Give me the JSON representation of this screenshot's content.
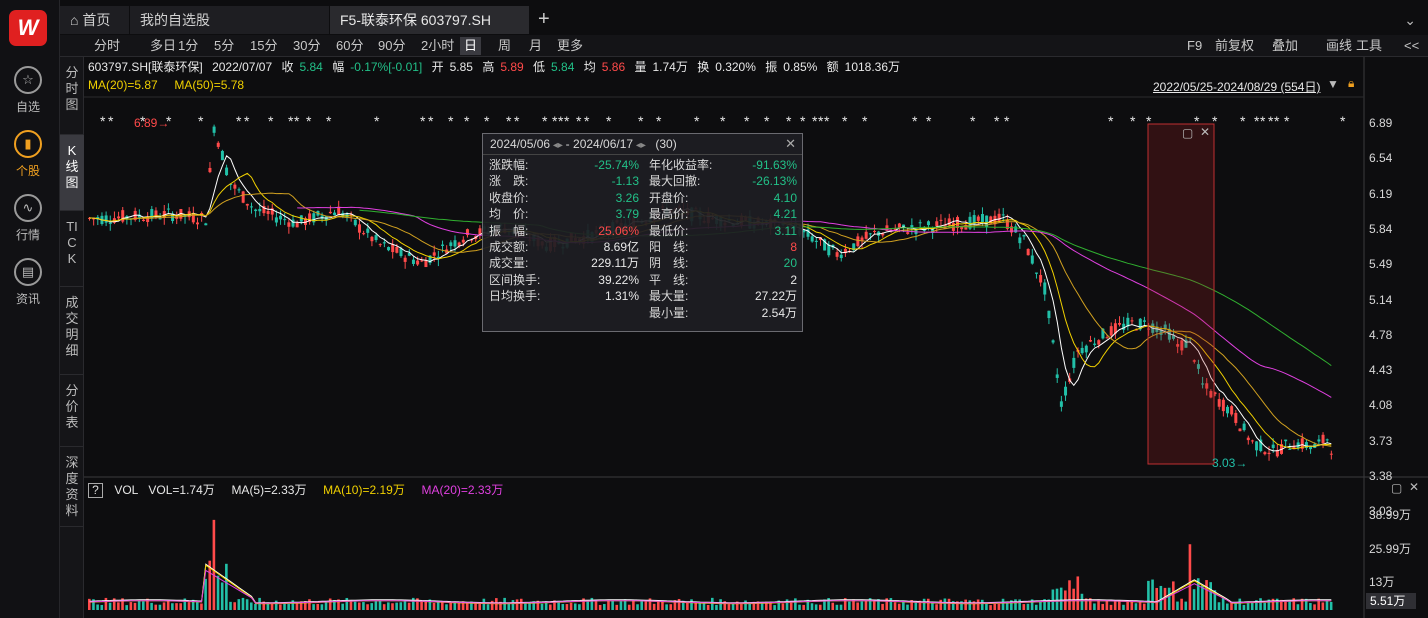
{
  "rail": {
    "logo": "W",
    "items": [
      {
        "label": "自选",
        "icon": "star-icon",
        "glyph": "☆"
      },
      {
        "label": "个股",
        "icon": "chart-bar-icon",
        "glyph": "▮",
        "active": true
      },
      {
        "label": "行情",
        "icon": "trend-icon",
        "glyph": "∿"
      },
      {
        "label": "资讯",
        "icon": "news-icon",
        "glyph": "▤"
      }
    ]
  },
  "tabs": [
    {
      "label": "首页",
      "icon": "home-icon"
    },
    {
      "label": "我的自选股"
    },
    {
      "label": "F5-联泰环保 603797.SH",
      "active": true
    }
  ],
  "tab_add": "+",
  "tab_menu": "⌄",
  "periods": [
    "分时",
    "多日",
    "1分",
    "5分",
    "15分",
    "30分",
    "60分",
    "90分",
    "2小时",
    "日",
    "周",
    "月",
    "更多"
  ],
  "selected_period": "日",
  "right_tools": [
    "F9",
    "前复权",
    "叠加",
    "画线",
    "工具",
    "<<"
  ],
  "side_tabs": [
    "分时图",
    "K线图",
    "TICK",
    "成交明细",
    "分价表",
    "深度资料"
  ],
  "info": {
    "code": "603797.SH[联泰环保]",
    "date": "2022/07/07",
    "close_label": "收",
    "close": "5.84",
    "chg_label": "幅",
    "chg": "-0.17%[-0.01]",
    "open_label": "开",
    "open": "5.85",
    "high_label": "高",
    "high": "5.89",
    "low_label": "低",
    "low": "5.84",
    "avg_label": "均",
    "avg": "5.86",
    "vol_label": "量",
    "vol": "1.74万",
    "turn_label": "换",
    "turn": "0.320%",
    "amp_label": "振",
    "amp": "0.85%",
    "amt_label": "额",
    "amt": "1018.36万"
  },
  "ma": {
    "ma20": "MA(20)=5.87",
    "ma50": "MA(50)=5.78"
  },
  "range": "2022/05/25-2024/08/29 (554日)",
  "price_axis": [
    "6.89",
    "6.54",
    "6.19",
    "5.84",
    "5.49",
    "5.14",
    "4.78",
    "4.43",
    "4.08",
    "3.73",
    "3.38",
    "3.03"
  ],
  "high_mark": "6.89",
  "low_mark": "3.03",
  "popup": {
    "start": "2024/05/06",
    "end": "2024/06/17",
    "count": "(30)",
    "left": [
      {
        "label": "涨跌幅:",
        "value": "-25.74%",
        "color": "dn"
      },
      {
        "label": "涨　跌:",
        "value": "-1.13",
        "color": "dn"
      },
      {
        "label": "收盘价:",
        "value": "3.26",
        "color": "dn"
      },
      {
        "label": "均　价:",
        "value": "3.79",
        "color": "dn"
      },
      {
        "label": "振　幅:",
        "value": "25.06%",
        "color": "up"
      },
      {
        "label": "成交额:",
        "value": "8.69亿",
        "color": "wt"
      },
      {
        "label": "成交量:",
        "value": "229.11万",
        "color": "wt"
      },
      {
        "label": "区间换手:",
        "value": "39.22%",
        "color": "wt"
      },
      {
        "label": "日均换手:",
        "value": "1.31%",
        "color": "wt"
      }
    ],
    "right": [
      {
        "label": "年化收益率:",
        "value": "-91.63%",
        "color": "dn"
      },
      {
        "label": "最大回撤:",
        "value": "-26.13%",
        "color": "dn"
      },
      {
        "label": "开盘价:",
        "value": "4.10",
        "color": "dn"
      },
      {
        "label": "最高价:",
        "value": "4.21",
        "color": "dn"
      },
      {
        "label": "最低价:",
        "value": "3.11",
        "color": "dn"
      },
      {
        "label": "阳　线:",
        "value": "8",
        "color": "up"
      },
      {
        "label": "阴　线:",
        "value": "20",
        "color": "dn"
      },
      {
        "label": "平　线:",
        "value": "2",
        "color": "wt"
      },
      {
        "label": "最大量:",
        "value": "27.22万",
        "color": "wt"
      },
      {
        "label": "最小量:",
        "value": "2.54万",
        "color": "wt"
      }
    ]
  },
  "vol": {
    "q": "?",
    "title": "VOL",
    "vol": "VOL=1.74万",
    "ma5": "MA(5)=2.33万",
    "ma10": "MA(10)=2.19万",
    "ma20": "MA(20)=2.33万",
    "axis": [
      "38.99万",
      "25.99万",
      "13万"
    ],
    "current": "5.51万"
  },
  "colors": {
    "up": "#ff4a4a",
    "down": "#22c0a8",
    "ma5": "#ffffff",
    "ma10": "#f0d000",
    "ma20": "#e040e0",
    "ma50": "#30b030"
  }
}
